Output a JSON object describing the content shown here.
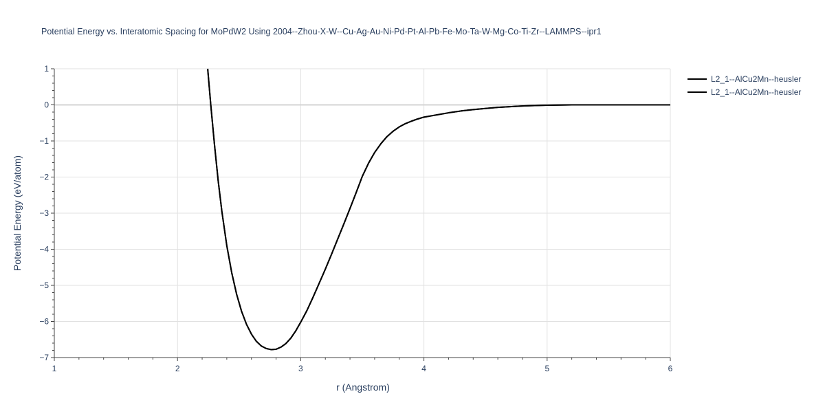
{
  "chart_data": {
    "type": "line",
    "title": "Potential Energy vs. Interatomic Spacing for MoPdW2 Using 2004--Zhou-X-W--Cu-Ag-Au-Ni-Pd-Pt-Al-Pb-Fe-Mo-Ta-W-Mg-Co-Ti-Zr--LAMMPS--ipr1",
    "xlabel": "r (Angstrom)",
    "ylabel": "Potential Energy (eV/atom)",
    "xlim": [
      1,
      6
    ],
    "ylim": [
      -7,
      1
    ],
    "x_ticks": [
      1,
      2,
      3,
      4,
      5,
      6
    ],
    "x_tick_labels": [
      "1",
      "2",
      "3",
      "4",
      "5",
      "6"
    ],
    "y_ticks": [
      1,
      0,
      -1,
      -2,
      -3,
      -4,
      -5,
      -6,
      -7
    ],
    "y_tick_labels": [
      "1",
      "0",
      "−1",
      "−2",
      "−3",
      "−4",
      "−5",
      "−6",
      "−7"
    ],
    "grid": true,
    "legend_position": "top-right",
    "line_color": "#000000",
    "series": [
      {
        "name": "L2_1--AlCu2Mn--heusler",
        "x": [
          2.245,
          2.27,
          2.3,
          2.33,
          2.36,
          2.4,
          2.44,
          2.48,
          2.52,
          2.56,
          2.6,
          2.64,
          2.68,
          2.72,
          2.76,
          2.8,
          2.84,
          2.88,
          2.92,
          2.96,
          3.0,
          3.05,
          3.1,
          3.15,
          3.2,
          3.25,
          3.3,
          3.35,
          3.4,
          3.45,
          3.5,
          3.55,
          3.6,
          3.65,
          3.7,
          3.75,
          3.8,
          3.85,
          3.9,
          3.95,
          4.0,
          4.1,
          4.2,
          4.3,
          4.4,
          4.5,
          4.6,
          4.7,
          4.8,
          4.9,
          5.0,
          5.2,
          5.4,
          5.6,
          5.8,
          6.0
        ],
        "y": [
          1.0,
          0.0,
          -1.1,
          -2.1,
          -2.95,
          -3.9,
          -4.65,
          -5.25,
          -5.72,
          -6.08,
          -6.35,
          -6.55,
          -6.68,
          -6.75,
          -6.78,
          -6.77,
          -6.71,
          -6.61,
          -6.46,
          -6.26,
          -6.02,
          -5.7,
          -5.33,
          -4.94,
          -4.55,
          -4.14,
          -3.72,
          -3.3,
          -2.87,
          -2.43,
          -1.98,
          -1.62,
          -1.32,
          -1.08,
          -0.88,
          -0.73,
          -0.61,
          -0.52,
          -0.45,
          -0.39,
          -0.34,
          -0.28,
          -0.22,
          -0.17,
          -0.13,
          -0.1,
          -0.07,
          -0.05,
          -0.03,
          -0.02,
          -0.01,
          0.0,
          0.0,
          0.0,
          0.0,
          0.0
        ]
      },
      {
        "name": "L2_1--AlCu2Mn--heusler",
        "x": [
          2.245,
          2.27,
          2.3,
          2.33,
          2.36,
          2.4,
          2.44,
          2.48,
          2.52,
          2.56,
          2.6,
          2.64,
          2.68,
          2.72,
          2.76,
          2.8,
          2.84,
          2.88,
          2.92,
          2.96,
          3.0,
          3.05,
          3.1,
          3.15,
          3.2,
          3.25,
          3.3,
          3.35,
          3.4,
          3.45,
          3.5,
          3.55,
          3.6,
          3.65,
          3.7,
          3.75,
          3.8,
          3.85,
          3.9,
          3.95,
          4.0,
          4.1,
          4.2,
          4.3,
          4.4,
          4.5,
          4.6,
          4.7,
          4.8,
          4.9,
          5.0,
          5.2,
          5.4,
          5.6,
          5.8,
          6.0
        ],
        "y": [
          1.0,
          0.0,
          -1.1,
          -2.1,
          -2.95,
          -3.9,
          -4.65,
          -5.25,
          -5.72,
          -6.08,
          -6.35,
          -6.55,
          -6.68,
          -6.75,
          -6.78,
          -6.77,
          -6.71,
          -6.61,
          -6.46,
          -6.26,
          -6.02,
          -5.7,
          -5.33,
          -4.94,
          -4.55,
          -4.14,
          -3.72,
          -3.3,
          -2.87,
          -2.43,
          -1.98,
          -1.62,
          -1.32,
          -1.08,
          -0.88,
          -0.73,
          -0.61,
          -0.52,
          -0.45,
          -0.39,
          -0.34,
          -0.28,
          -0.22,
          -0.17,
          -0.13,
          -0.1,
          -0.07,
          -0.05,
          -0.03,
          -0.02,
          -0.01,
          0.0,
          0.0,
          0.0,
          0.0,
          0.0
        ]
      }
    ]
  }
}
